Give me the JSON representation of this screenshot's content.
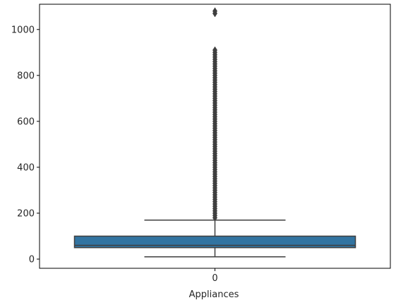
{
  "chart_data": {
    "type": "box",
    "title": "",
    "xlabel": "Appliances",
    "ylabel": "",
    "categories": [
      "0"
    ],
    "ylim": [
      -40,
      1110
    ],
    "yticks": [
      0,
      200,
      400,
      600,
      800,
      1000
    ],
    "ytick_labels": [
      "0",
      "200",
      "400",
      "600",
      "800",
      "1000"
    ],
    "xtick_labels": [
      "0"
    ],
    "grid": false,
    "legend": "none",
    "box": {
      "whisker_low": 10,
      "q1": 50,
      "median": 60,
      "q3": 100,
      "whisker_high": 170
    },
    "outliers": [
      180,
      190,
      200,
      210,
      220,
      230,
      240,
      250,
      260,
      270,
      280,
      290,
      300,
      310,
      320,
      330,
      340,
      350,
      360,
      370,
      380,
      390,
      400,
      410,
      420,
      430,
      440,
      450,
      460,
      470,
      480,
      490,
      500,
      510,
      520,
      530,
      540,
      550,
      560,
      570,
      580,
      590,
      600,
      610,
      620,
      630,
      640,
      650,
      660,
      670,
      680,
      690,
      700,
      710,
      720,
      730,
      740,
      750,
      760,
      770,
      780,
      790,
      800,
      810,
      820,
      830,
      840,
      850,
      860,
      870,
      880,
      890,
      900,
      910,
      1070,
      1080
    ],
    "colors": {
      "box_fill": "#3274a1",
      "line": "#3f3f3f",
      "axes": "#000000",
      "text": "#262626"
    }
  }
}
